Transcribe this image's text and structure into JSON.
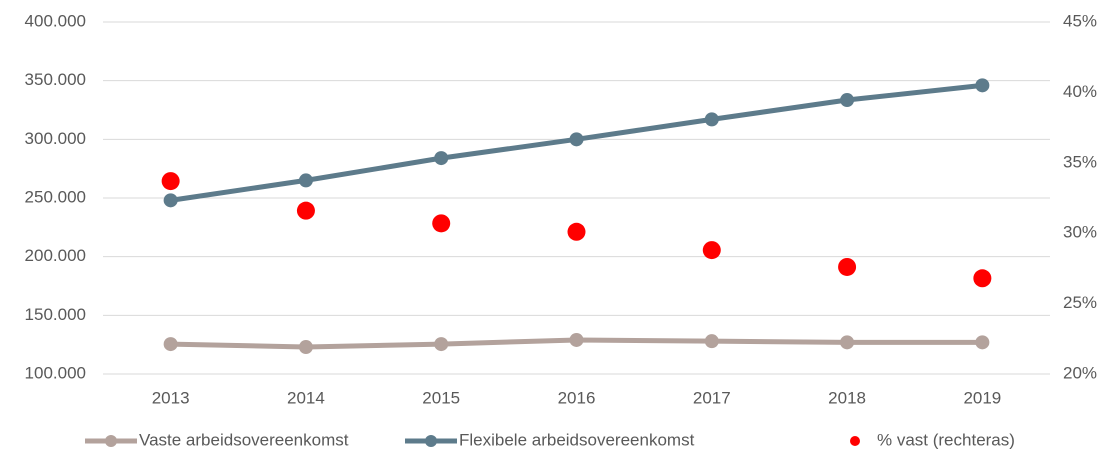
{
  "chart_data": {
    "type": "line",
    "categories": [
      "2013",
      "2014",
      "2015",
      "2016",
      "2017",
      "2018",
      "2019"
    ],
    "series": [
      {
        "name": "Vaste arbeidsovereenkomst",
        "color": "#b3a29c",
        "values": [
          125500,
          123000,
          125500,
          129000,
          128000,
          127000,
          127000
        ]
      },
      {
        "name": "Flexibele arbeidsovereenkomst",
        "color": "#5d7b8b",
        "values": [
          248000,
          265000,
          284000,
          300000,
          317000,
          333500,
          346000
        ]
      },
      {
        "name": "% vast (rechteras)",
        "color": "#ff0000",
        "kind": "scatter",
        "axis": "y2",
        "values": [
          33.7,
          31.6,
          30.7,
          30.1,
          28.8,
          27.6,
          26.8
        ]
      }
    ],
    "ylim": [
      100000,
      400000
    ],
    "yticks": [
      {
        "value": 100000,
        "label": "100.000"
      },
      {
        "value": 150000,
        "label": "150.000"
      },
      {
        "value": 200000,
        "label": "200.000"
      },
      {
        "value": 250000,
        "label": "250.000"
      },
      {
        "value": 300000,
        "label": "300.000"
      },
      {
        "value": 350000,
        "label": "350.000"
      },
      {
        "value": 400000,
        "label": "400.000"
      }
    ],
    "y2lim": [
      20,
      45
    ],
    "y2ticks": [
      {
        "value": 20,
        "label": "20%"
      },
      {
        "value": 25,
        "label": "25%"
      },
      {
        "value": 30,
        "label": "30%"
      },
      {
        "value": 35,
        "label": "35%"
      },
      {
        "value": 40,
        "label": "40%"
      },
      {
        "value": 45,
        "label": "45%"
      }
    ],
    "grid": true,
    "legend": "bottom"
  }
}
